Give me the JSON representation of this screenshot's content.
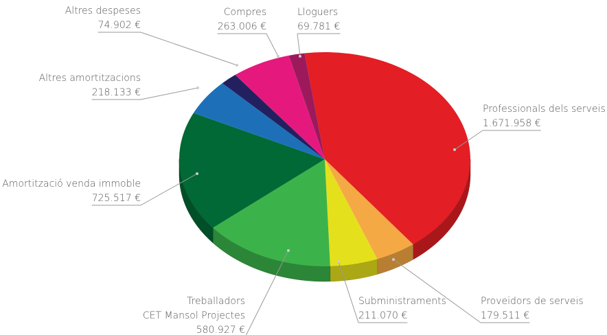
{
  "chart_data": {
    "type": "pie",
    "categories": [
      "Professionals dels serveis",
      "Proveïdors de serveis",
      "Subministraments",
      "Treballadors\nCET Mansol Projectes",
      "Amortització venda immoble",
      "Altres amortitzacions",
      "Altres despeses",
      "Compres",
      "Lloguers"
    ],
    "values": [
      1671958,
      179511,
      211070,
      580927,
      725517,
      218133,
      74902,
      263006,
      69781
    ],
    "value_labels": [
      "1.671.958 €",
      "179.511 €",
      "211.070 €",
      "580.927 €",
      "725.517 €",
      "218.133 €",
      "74.902 €",
      "263.006 €",
      "69.781 €"
    ],
    "colors": [
      "#e31e24",
      "#f5a944",
      "#e5e01c",
      "#3bb34a",
      "#016935",
      "#1d70b8",
      "#232060",
      "#e5197d",
      "#9c1a5b"
    ]
  }
}
